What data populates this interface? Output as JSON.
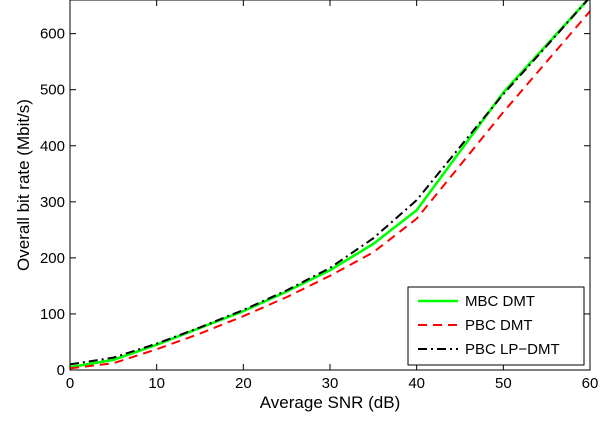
{
  "chart_data": {
    "type": "line",
    "xlabel": "Average SNR (dB)",
    "ylabel": "Overall bit rate (Mbit/s)",
    "xlim": [
      0,
      60
    ],
    "ylim": [
      0,
      660
    ],
    "x_ticks": [
      0,
      10,
      20,
      30,
      40,
      50,
      60
    ],
    "y_ticks": [
      0,
      100,
      200,
      300,
      400,
      500,
      600
    ],
    "grid": false,
    "legend_position": "bottom-right",
    "x": [
      0,
      5,
      10,
      15,
      20,
      25,
      30,
      35,
      40,
      45,
      50,
      55,
      60
    ],
    "series": [
      {
        "name": "MBC DMT",
        "color": "#00ff00",
        "line_style": "solid",
        "values": [
          5,
          18,
          45,
          75,
          105,
          140,
          178,
          225,
          285,
          390,
          495,
          580,
          665
        ]
      },
      {
        "name": "PBC DMT",
        "color": "#ff0000",
        "line_style": "dashed",
        "values": [
          3,
          12,
          37,
          65,
          96,
          130,
          168,
          210,
          270,
          365,
          460,
          550,
          640
        ]
      },
      {
        "name": "PBC LP−DMT",
        "color": "#000000",
        "line_style": "dash-dot",
        "values": [
          10,
          22,
          47,
          76,
          107,
          142,
          182,
          235,
          303,
          398,
          492,
          578,
          665
        ]
      }
    ]
  }
}
